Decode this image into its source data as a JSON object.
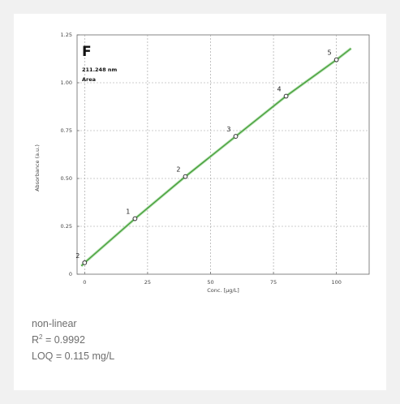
{
  "chart_data": {
    "type": "scatter",
    "panel_label": "F",
    "annotation_line1": "211.248 nm",
    "annotation_line2": "Area",
    "xlabel": "Conc. [µg/L]",
    "ylabel": "Absorbance (a.u.)",
    "xlim": [
      -3,
      113
    ],
    "ylim": [
      0,
      1.25
    ],
    "x_ticks": [
      0,
      25,
      50,
      75,
      100
    ],
    "y_ticks": [
      0,
      0.25,
      0.5,
      0.75,
      1.0,
      1.25
    ],
    "x_tick_labels": [
      "0",
      "25",
      "50",
      "75",
      "100"
    ],
    "y_tick_labels": [
      "0",
      "0.25",
      "0.50",
      "0.75",
      "1.00",
      "1.25"
    ],
    "grid": true,
    "points": [
      {
        "label": "2",
        "x": 0,
        "y": 0.06
      },
      {
        "label": "1",
        "x": 20,
        "y": 0.29
      },
      {
        "label": "2",
        "x": 40,
        "y": 0.51
      },
      {
        "label": "3",
        "x": 60,
        "y": 0.72
      },
      {
        "label": "4",
        "x": 80,
        "y": 0.93
      },
      {
        "label": "5",
        "x": 100,
        "y": 1.12
      }
    ],
    "fit_line_color": "#6abf5e",
    "point_color": "#333333"
  },
  "caption": {
    "fit_type": "non-linear",
    "r2_prefix": "R",
    "r2_sup": "2",
    "r2_value": " = 0.9992",
    "loq": "LOQ = 0.115 mg/L"
  }
}
